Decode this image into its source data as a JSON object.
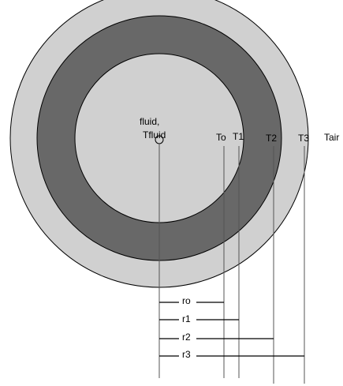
{
  "diagram": {
    "center_label": {
      "line1": "fluid,",
      "line2": "Tfluid"
    },
    "temperatures": [
      "To",
      "T1",
      "T2",
      "T3",
      "Tair"
    ],
    "radii": [
      "ro",
      "r1",
      "r2",
      "r3"
    ]
  }
}
